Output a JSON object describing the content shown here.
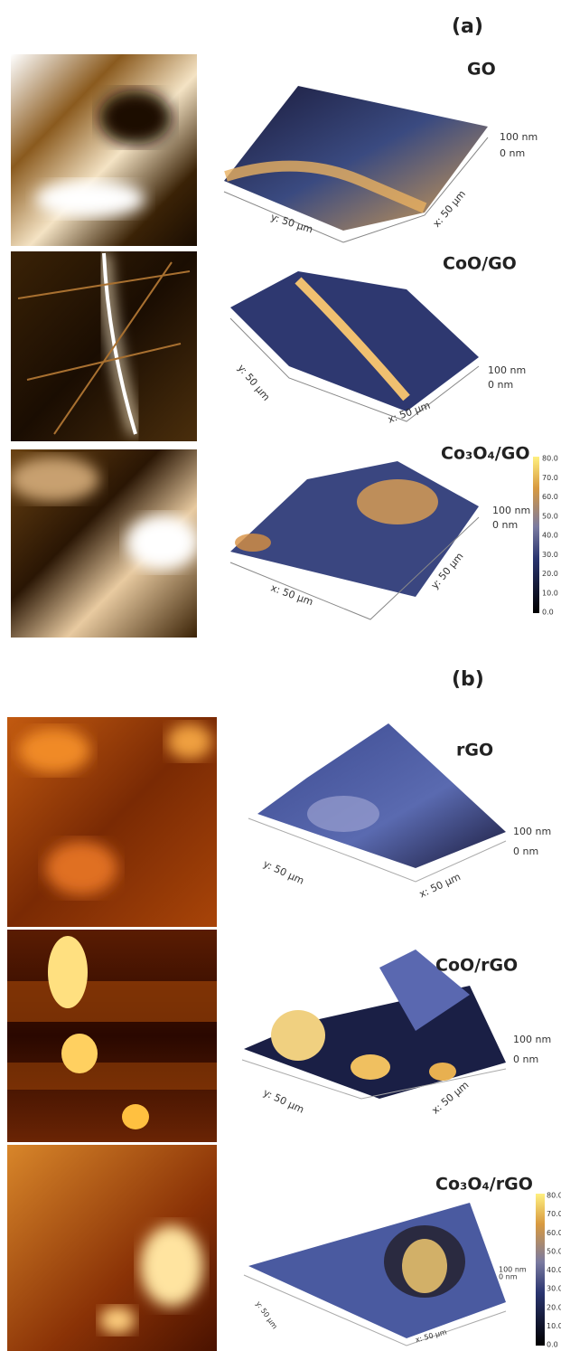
{
  "panels": [
    {
      "label": "(a)",
      "samples": [
        {
          "name": "GO",
          "scale_top": "100 nm",
          "scale_bottom": "0 nm",
          "axis_1": "y: 50 µm",
          "axis_2": "x: 50 µm"
        },
        {
          "name": "CoO/GO",
          "scale_top": "100 nm",
          "scale_bottom": "0 nm",
          "axis_1": "y: 50 µm",
          "axis_2": "x: 50 µm"
        },
        {
          "name": "Co₃O₄/GO",
          "scale_top": "100 nm",
          "scale_bottom": "0 nm",
          "axis_1": "x: 50 µm",
          "axis_2": "y: 50 µm"
        }
      ],
      "colorbar": [
        "80.0",
        "70.0",
        "60.0",
        "50.0",
        "40.0",
        "30.0",
        "20.0",
        "10.0",
        "0.0"
      ]
    },
    {
      "label": "(b)",
      "samples": [
        {
          "name": "rGO",
          "scale_top": "100 nm",
          "scale_bottom": "0 nm",
          "axis_1": "y: 50 µm",
          "axis_2": "x: 50 µm"
        },
        {
          "name": "CoO/rGO",
          "scale_top": "100 nm",
          "scale_bottom": "0 nm",
          "axis_1": "y: 50 µm",
          "axis_2": "x: 50 µm"
        },
        {
          "name": "Co₃O₄/rGO",
          "scale_top": "100 nm",
          "scale_bottom": "0 nm",
          "axis_1": "y: 50 µm",
          "axis_2": "x: 50 µm"
        }
      ],
      "colorbar": [
        "80.0",
        "70.0",
        "60.0",
        "50.0",
        "40.0",
        "30.0",
        "20.0",
        "10.0",
        "0.0"
      ]
    }
  ]
}
